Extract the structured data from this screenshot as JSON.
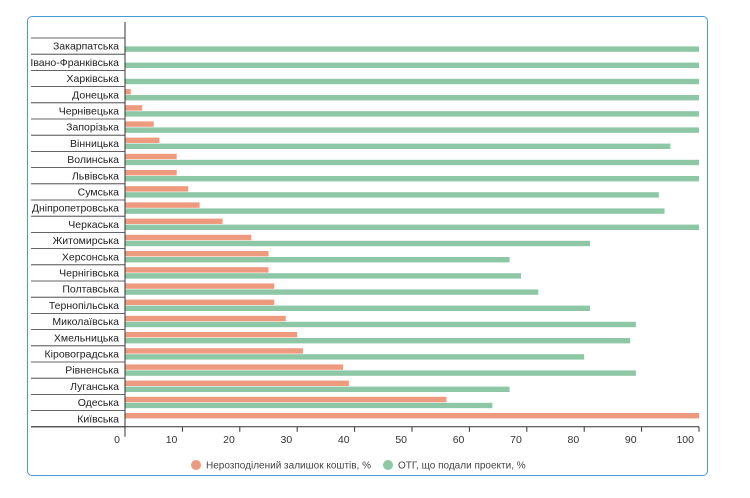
{
  "chart_data": {
    "type": "bar",
    "orientation": "horizontal",
    "categories": [
      "Закарпатська",
      "Івано-Франківська",
      "Харківська",
      "Донецька",
      "Чернівецька",
      "Запорізька",
      "Вінницька",
      "Волинська",
      "Львівська",
      "Сумська",
      "Дніпропетровська",
      "Черкаська",
      "Житомирська",
      "Херсонська",
      "Чернігівська",
      "Полтавська",
      "Тернопільська",
      "Миколаївська",
      "Хмельницька",
      "Кіровоградська",
      "Рівненська",
      "Луганська",
      "Одеська",
      "Київська"
    ],
    "series": [
      {
        "name": "Нерозподілений залишок коштів, %",
        "color": "#ee9a7f",
        "values": [
          0,
          0,
          0,
          1,
          3,
          5,
          6,
          9,
          9,
          11,
          13,
          17,
          22,
          25,
          25,
          26,
          26,
          28,
          30,
          31,
          38,
          39,
          56,
          100
        ]
      },
      {
        "name": "ОТГ, що подали проекти, %",
        "color": "#8dc7a6",
        "values": [
          100,
          100,
          100,
          100,
          100,
          100,
          95,
          100,
          100,
          93,
          94,
          100,
          81,
          67,
          69,
          72,
          81,
          89,
          88,
          80,
          89,
          67,
          64,
          0
        ]
      }
    ],
    "xlim": [
      0,
      100
    ],
    "xticks": [
      "0",
      "10",
      "20",
      "30",
      "40",
      "50",
      "60",
      "70",
      "80",
      "90",
      "100"
    ],
    "grid": false,
    "legend_position": "bottom"
  }
}
